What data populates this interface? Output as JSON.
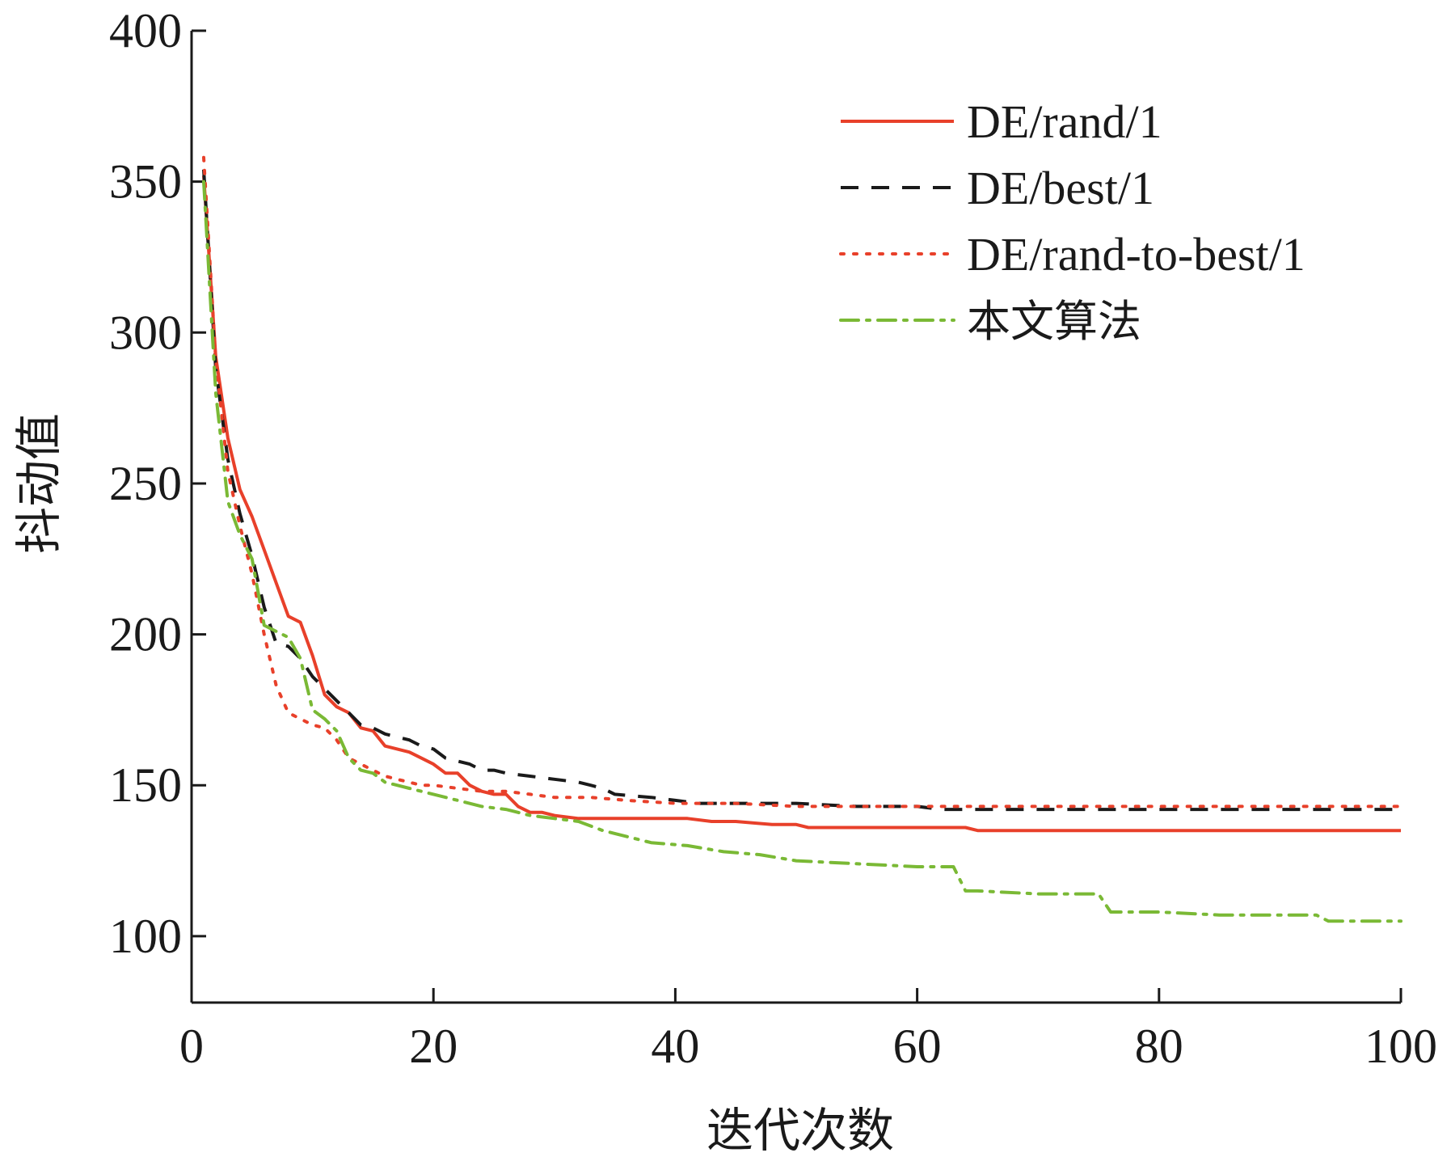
{
  "chart_data": {
    "type": "line",
    "xlabel": "迭代次数",
    "ylabel": "抖动值",
    "xlim": [
      0,
      100
    ],
    "ylim": [
      78,
      400
    ],
    "xticks": [
      0,
      20,
      40,
      60,
      80,
      100
    ],
    "yticks": [
      100,
      150,
      200,
      250,
      300,
      350,
      400
    ],
    "grid": false,
    "legend_position": "top-right",
    "series": [
      {
        "name": "DE/rand/1",
        "color": "#e8402a",
        "dash": "solid",
        "x": [
          1,
          2,
          3,
          4,
          5,
          6,
          7,
          8,
          9,
          10,
          11,
          12,
          13,
          14,
          15,
          16,
          17,
          18,
          19,
          20,
          21,
          22,
          23,
          24,
          25,
          26,
          27,
          28,
          29,
          30,
          32,
          35,
          38,
          41,
          43,
          45,
          48,
          50,
          51,
          55,
          60,
          64,
          65,
          70,
          80,
          90,
          100
        ],
        "y": [
          352,
          292,
          265,
          248,
          239,
          228,
          217,
          206,
          204,
          193,
          180,
          176,
          174,
          169,
          168,
          163,
          162,
          161,
          159,
          157,
          154,
          154,
          150,
          148,
          147,
          147,
          143,
          141,
          141,
          140,
          139,
          139,
          139,
          139,
          138,
          138,
          137,
          137,
          136,
          136,
          136,
          136,
          135,
          135,
          135,
          135,
          135
        ]
      },
      {
        "name": "DE/best/1",
        "color": "#1a1a1a",
        "dash": "dash",
        "x": [
          1,
          2,
          3,
          4,
          5,
          6,
          7,
          8,
          9,
          10,
          11,
          12,
          13,
          14,
          15,
          16,
          17,
          18,
          19,
          20,
          21,
          22,
          23,
          24,
          25,
          26,
          28,
          30,
          32,
          33,
          34,
          35,
          38,
          40,
          42,
          45,
          50,
          55,
          60,
          62,
          65,
          70,
          80,
          90,
          100
        ],
        "y": [
          354,
          288,
          258,
          240,
          226,
          209,
          197,
          196,
          192,
          186,
          182,
          178,
          174,
          170,
          169,
          167,
          166,
          165,
          163,
          162,
          159,
          158,
          157,
          155,
          155,
          154,
          153,
          152,
          151,
          150,
          149,
          147,
          146,
          145,
          144,
          144,
          144,
          143,
          143,
          142,
          142,
          142,
          142,
          142,
          142
        ]
      },
      {
        "name": "DE/rand-to-best/1",
        "color": "#e8402a",
        "dash": "dot",
        "x": [
          1,
          2,
          3,
          4,
          5,
          6,
          7,
          8,
          9,
          10,
          11,
          12,
          13,
          14,
          15,
          16,
          17,
          18,
          19,
          20,
          22,
          24,
          26,
          28,
          30,
          33,
          36,
          40,
          45,
          50,
          55,
          60,
          70,
          80,
          90,
          100
        ],
        "y": [
          358,
          291,
          254,
          236,
          220,
          200,
          183,
          174,
          172,
          170,
          169,
          165,
          159,
          157,
          155,
          153,
          152,
          151,
          150,
          150,
          149,
          148,
          148,
          147,
          146,
          146,
          145,
          144,
          144,
          143,
          143,
          143,
          143,
          143,
          143,
          143
        ]
      },
      {
        "name": "本文算法",
        "color": "#7ab935",
        "dash": "dashdot",
        "x": [
          1,
          2,
          3,
          4,
          5,
          6,
          7,
          8,
          9,
          10,
          11,
          12,
          13,
          14,
          15,
          16,
          17,
          18,
          19,
          20,
          22,
          24,
          26,
          28,
          30,
          32,
          34,
          36,
          38,
          41,
          44,
          47,
          50,
          55,
          60,
          63,
          64,
          65,
          70,
          75,
          76,
          80,
          85,
          90,
          93,
          94,
          100
        ],
        "y": [
          350,
          280,
          244,
          233,
          225,
          203,
          201,
          199,
          192,
          175,
          172,
          168,
          159,
          155,
          154,
          151,
          150,
          149,
          148,
          147,
          145,
          143,
          142,
          140,
          139,
          138,
          135,
          133,
          131,
          130,
          128,
          127,
          125,
          124,
          123,
          123,
          115,
          115,
          114,
          114,
          108,
          108,
          107,
          107,
          107,
          105,
          105
        ]
      }
    ]
  }
}
